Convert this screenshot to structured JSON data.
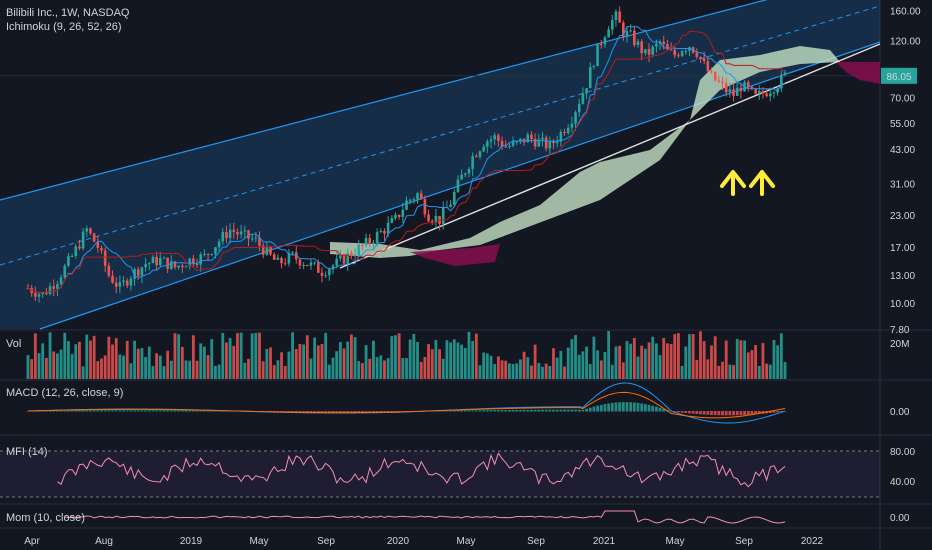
{
  "header": {
    "symbol_line": "Bilibili Inc., 1W, NASDAQ",
    "indicator_line": "Ichimoku (9, 26, 52, 26)"
  },
  "colors": {
    "background": "#131722",
    "up": "#26a69a",
    "down": "#ef5350",
    "channel": "#2196f3",
    "cloud_bull": "#c8e6c9",
    "cloud_bear": "#880e4f",
    "price_badge": "#26a69a",
    "arrows": "#ffeb3b",
    "mfi": "#f48fb1"
  },
  "chart_data": [
    {
      "type": "candlestick",
      "title": "Bilibili Inc., 1W, NASDAQ",
      "scale": "log",
      "y_ticks": [
        "160.00",
        "120.00",
        "86.05",
        "70.00",
        "55.00",
        "43.00",
        "31.00",
        "23.00",
        "17.00",
        "13.00",
        "10.00",
        "7.80"
      ],
      "y_tick_values": [
        160,
        120,
        70,
        55,
        43,
        31,
        23,
        17,
        13,
        10,
        7.8
      ],
      "last_price": "86.05",
      "ylim": [
        7.8,
        170
      ],
      "x_ticks": [
        "Apr",
        "Aug",
        "2019",
        "May",
        "Sep",
        "2020",
        "May",
        "Sep",
        "2021",
        "May",
        "Sep",
        "2022"
      ],
      "price_path": [
        [
          0,
          11.5
        ],
        [
          4,
          10.8
        ],
        [
          8,
          12.5
        ],
        [
          12,
          15.5
        ],
        [
          16,
          20.0
        ],
        [
          19,
          17.0
        ],
        [
          22,
          13.0
        ],
        [
          25,
          11.5
        ],
        [
          28,
          13.0
        ],
        [
          32,
          14.5
        ],
        [
          36,
          15.0
        ],
        [
          40,
          14.0
        ],
        [
          44,
          15.0
        ],
        [
          48,
          15.5
        ],
        [
          52,
          18.0
        ],
        [
          55,
          20.0
        ],
        [
          58,
          19.0
        ],
        [
          62,
          18.0
        ],
        [
          65,
          16.0
        ],
        [
          68,
          14.5
        ],
        [
          72,
          15.5
        ],
        [
          76,
          14.5
        ],
        [
          80,
          13.5
        ],
        [
          84,
          14.5
        ],
        [
          88,
          16.0
        ],
        [
          92,
          17.5
        ],
        [
          96,
          19.5
        ],
        [
          100,
          22.0
        ],
        [
          103,
          26.0
        ],
        [
          106,
          28.0
        ],
        [
          109,
          23.0
        ],
        [
          112,
          22.0
        ],
        [
          115,
          26.0
        ],
        [
          118,
          33.0
        ],
        [
          121,
          40.0
        ],
        [
          124,
          46.0
        ],
        [
          127,
          48.0
        ],
        [
          130,
          44.0
        ],
        [
          133,
          45.0
        ],
        [
          136,
          48.0
        ],
        [
          139,
          46.0
        ],
        [
          142,
          44.0
        ],
        [
          145,
          50.0
        ],
        [
          148,
          58.0
        ],
        [
          150,
          68.0
        ],
        [
          152,
          80.0
        ],
        [
          154,
          100.0
        ],
        [
          156,
          120.0
        ],
        [
          158,
          140.0
        ],
        [
          160,
          150.0
        ],
        [
          162,
          130.0
        ],
        [
          164,
          125.0
        ],
        [
          166,
          115.0
        ],
        [
          168,
          105.0
        ],
        [
          170,
          110.0
        ],
        [
          172,
          118.0
        ],
        [
          174,
          108.0
        ],
        [
          176,
          105.0
        ],
        [
          178,
          112.0
        ],
        [
          180,
          115.0
        ],
        [
          182,
          108.0
        ],
        [
          184,
          95.0
        ],
        [
          186,
          85.0
        ],
        [
          188,
          80.0
        ],
        [
          190,
          75.0
        ],
        [
          192,
          72.0
        ],
        [
          194,
          78.0
        ],
        [
          196,
          75.0
        ],
        [
          198,
          70.0
        ],
        [
          200,
          73.0
        ],
        [
          202,
          76.0
        ],
        [
          204,
          80.0
        ],
        [
          206,
          86.05
        ]
      ],
      "indicator": "Ichimoku (9, 26, 52, 26)",
      "annotations": [
        "two up arrows"
      ]
    },
    {
      "type": "bar",
      "title": "Vol",
      "y_ticks": [
        "20M"
      ],
      "ylim": [
        0,
        22000000
      ]
    },
    {
      "type": "line",
      "title": "MACD (12, 26, close, 9)",
      "y_ticks": [
        "0.00"
      ],
      "series": [
        {
          "values_shape": "macd",
          "color": "#2196f3"
        },
        {
          "values_shape": "signal",
          "color": "#ff6d00"
        }
      ]
    },
    {
      "type": "line",
      "title": "MFI (14)",
      "y_ticks": [
        "80.00",
        "40.00"
      ],
      "ylim": [
        20,
        90
      ]
    },
    {
      "type": "line",
      "title": "Mom (10, close)",
      "y_ticks": [
        "0.00"
      ]
    }
  ],
  "panes": {
    "vol_label": "Vol",
    "macd_label": "MACD (12, 26, close, 9)",
    "mfi_label": "MFI (14)",
    "mom_label": "Mom (10, close)",
    "vol_tick": "20M",
    "macd_tick": "0.00",
    "mfi_tick_hi": "80.00",
    "mfi_tick_lo": "40.00",
    "mom_tick": "0.00"
  }
}
